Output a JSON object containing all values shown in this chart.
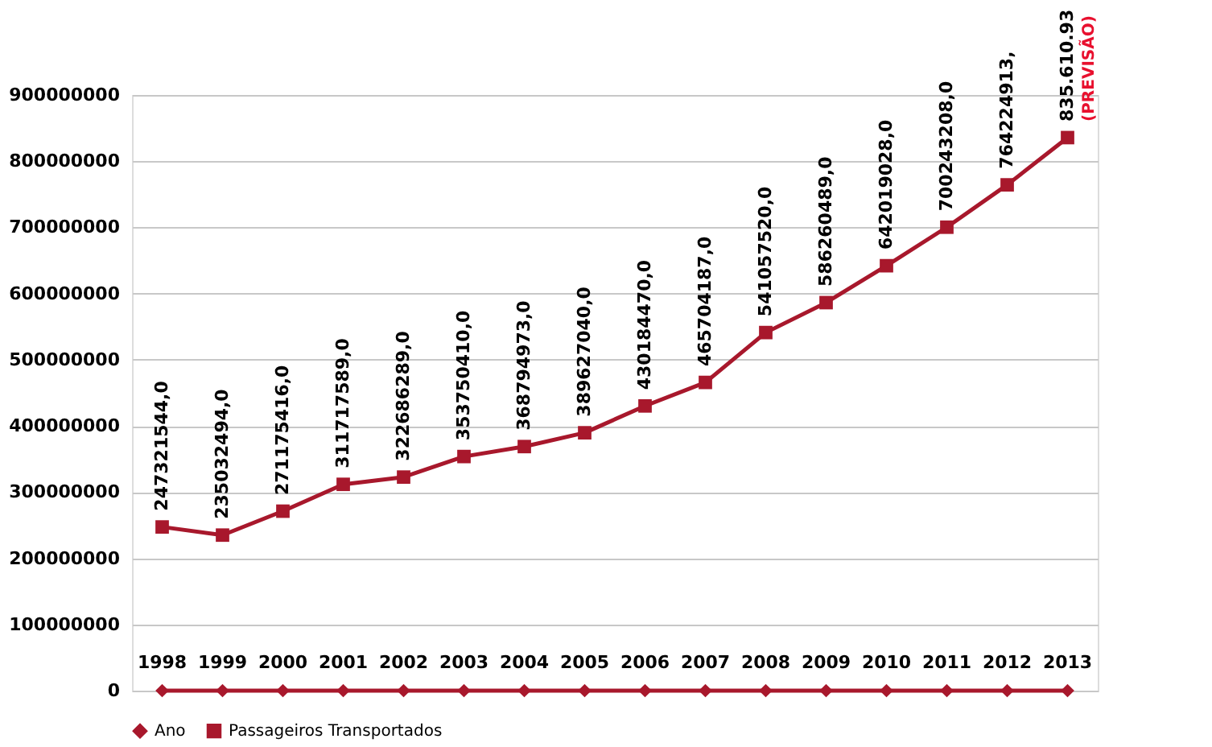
{
  "chart_data": {
    "type": "line",
    "categories": [
      null,
      null,
      null,
      null,
      null,
      null,
      null,
      null,
      null,
      null,
      null,
      null,
      null,
      null,
      null,
      null
    ],
    "series": [
      {
        "name": "Ano",
        "color": "#a8182c",
        "marker": "diamond",
        "values": [
          1998,
          1999,
          2000,
          2001,
          2002,
          2003,
          2004,
          2005,
          2006,
          2007,
          2008,
          2009,
          2010,
          2011,
          2012,
          2013
        ],
        "value_labels": [
          "1998",
          "1999",
          "2000",
          "2001",
          "2002",
          "2003",
          "2004",
          "2005",
          "2006",
          "2007",
          "2008",
          "2009",
          "2010",
          "2011",
          "2012",
          "2013"
        ]
      },
      {
        "name": "Passageiros Transportados",
        "color": "#a8182c",
        "marker": "square",
        "values": [
          247321544,
          235032494,
          271175416,
          311717589,
          322686289,
          353750410,
          368794973,
          389627040,
          430184470,
          465704187,
          541057520,
          586260489,
          642019028,
          700243208,
          764224913,
          835610930
        ],
        "value_labels": [
          "247321544,0",
          "235032494,0",
          "271175416,0",
          "311717589,0",
          "322686289,0",
          "353750410,0",
          "368794973,0",
          "389627040,0",
          "430184470,0",
          "465704187,0",
          "541057520,0",
          "586260489,0",
          "642019028,0",
          "700243208,0",
          "764224913,",
          "835.610.93"
        ]
      }
    ],
    "annotations": [
      "(PREVISÃO)"
    ],
    "ylim": [
      0,
      900000000
    ],
    "yticks": [
      0,
      100000000,
      200000000,
      300000000,
      400000000,
      500000000,
      600000000,
      700000000,
      800000000,
      900000000
    ],
    "grid": "y",
    "legend": "bottom",
    "tick_labels": "y"
  }
}
